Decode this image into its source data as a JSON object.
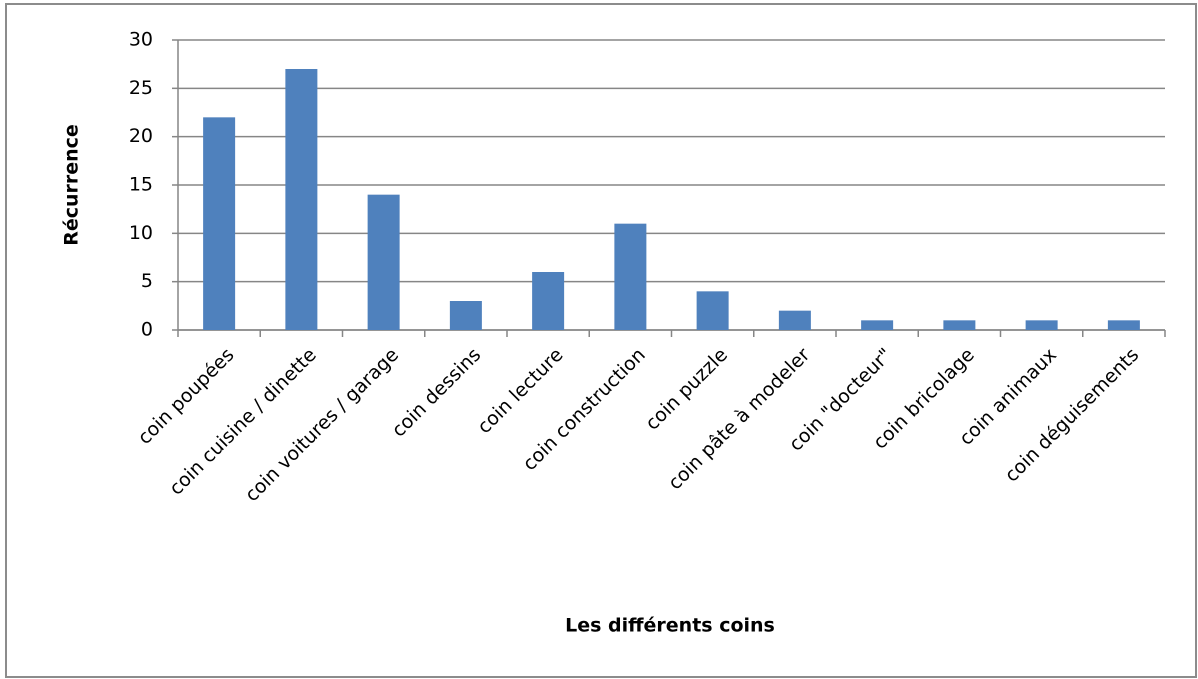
{
  "chart_data": {
    "type": "bar",
    "x_label": "Les différents coins",
    "y_label": "Récurrence",
    "categories": [
      "coin poupées",
      "coin cuisine / dinette",
      "coin voitures / garage",
      "coin dessins",
      "coin lecture",
      "coin construction",
      "coin puzzle",
      "coin pâte à modeler",
      "coin \"docteur\"",
      "coin bricolage",
      "coin animaux",
      "coin déguisements"
    ],
    "values": [
      22,
      27,
      14,
      3,
      6,
      11,
      4,
      2,
      1,
      1,
      1,
      1
    ],
    "color": "#4f81bd",
    "ylim": [
      0,
      30
    ],
    "yticks": [
      0,
      5,
      10,
      15,
      20,
      25,
      30
    ],
    "grid": true
  }
}
